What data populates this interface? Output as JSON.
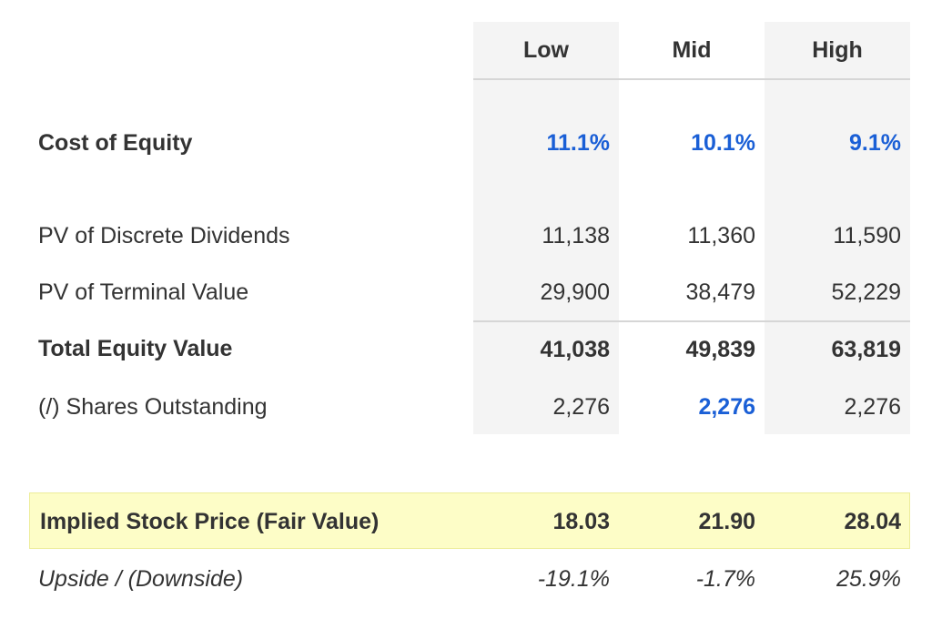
{
  "headers": {
    "low": "Low",
    "mid": "Mid",
    "high": "High"
  },
  "rows": {
    "cost_of_equity": {
      "label": "Cost of Equity",
      "low": "11.1%",
      "mid": "10.1%",
      "high": "9.1%"
    },
    "pv_discrete_dividends": {
      "label": "PV of Discrete Dividends",
      "low": "11,138",
      "mid": "11,360",
      "high": "11,590"
    },
    "pv_terminal_value": {
      "label": "PV of Terminal Value",
      "low": "29,900",
      "mid": "38,479",
      "high": "52,229"
    },
    "total_equity_value": {
      "label": "Total Equity Value",
      "low": "41,038",
      "mid": "49,839",
      "high": "63,819"
    },
    "shares_outstanding": {
      "label": "(/) Shares Outstanding",
      "low": "2,276",
      "mid": "2,276",
      "high": "2,276"
    },
    "implied_stock_price": {
      "label": "Implied Stock Price (Fair Value)",
      "low": "18.03",
      "mid": "21.90",
      "high": "28.04"
    },
    "upside_downside": {
      "label": "Upside / (Downside)",
      "low": "-19.1%",
      "mid": "-1.7%",
      "high": "25.9%"
    }
  },
  "colors": {
    "column_bg": "#f4f4f4",
    "highlight_bg": "#fdfdc7",
    "accent_blue": "#1a5fd6",
    "text": "#333333"
  }
}
